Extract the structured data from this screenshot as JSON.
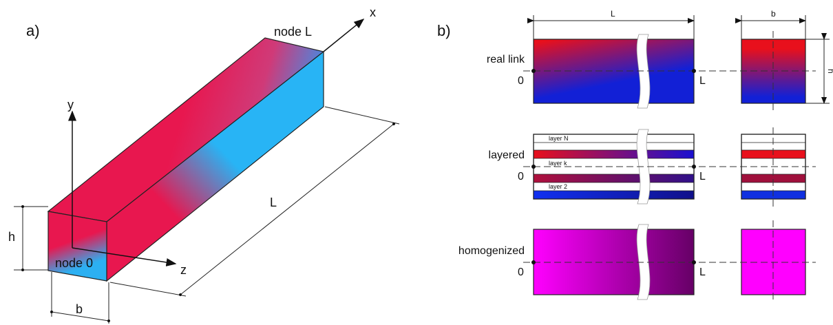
{
  "panel_a": {
    "label": "a)",
    "axes": {
      "x": "x",
      "y": "y",
      "z": "z"
    },
    "nodes": [
      "node 0",
      "node L"
    ],
    "dimensions": {
      "h": "h",
      "b": "b",
      "L": "L"
    }
  },
  "panel_b": {
    "label": "b)",
    "dimensions": {
      "L": "L",
      "b": "b",
      "h": "h"
    },
    "rows": [
      {
        "label": "real link",
        "start": "0",
        "end": "L"
      },
      {
        "label": "layered",
        "start": "0",
        "end": "L",
        "layers": [
          "layer N",
          "layer k",
          "layer 2"
        ]
      },
      {
        "label": "homogenized",
        "start": "0",
        "end": "L"
      }
    ]
  }
}
